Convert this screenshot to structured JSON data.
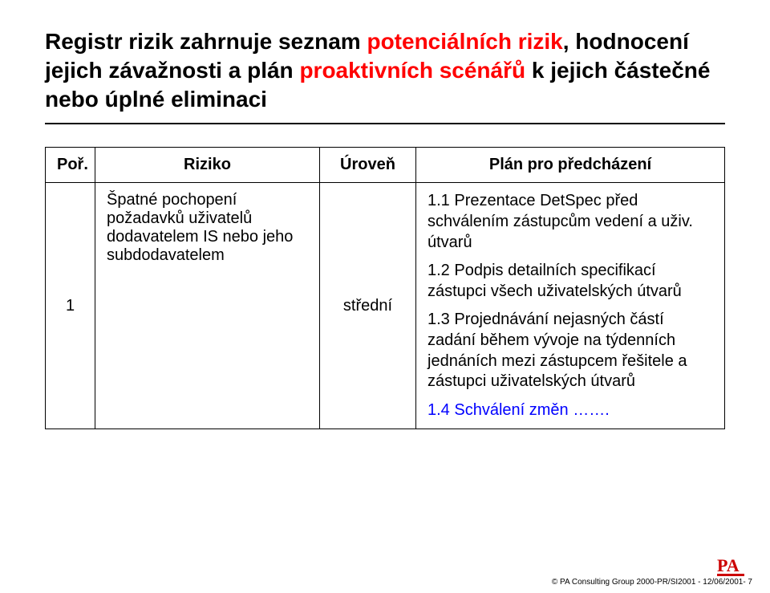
{
  "title": {
    "line1_pre": "Registr rizik zahrnuje seznam ",
    "line1_red1": "potenciálních rizik",
    "line1_mid": ", hodnocení jejich závažnosti a plán ",
    "line1_red2": "proaktivních scénářů",
    "line1_post": " k jejich částečné nebo úplné eliminaci"
  },
  "table": {
    "headers": {
      "por": "Poř.",
      "riziko": "Riziko",
      "uroven": "Úroveň",
      "plan": "Plán pro předcházení"
    },
    "row": {
      "por": "1",
      "riziko": "Špatné pochopení požadavků uživatelů dodavatelem IS nebo jeho subdodavatelem",
      "uroven": "střední",
      "plan": [
        {
          "num": "1.1",
          "txt": "Prezentace DetSpec před schválením zástupcům vedení a uživ. útvarů",
          "blue": false
        },
        {
          "num": "1.2",
          "txt": "Podpis detailních specifikací zástupci všech uživatelských útvarů",
          "blue": false
        },
        {
          "num": "1.3",
          "txt": "Projednávání nejasných částí zadání během vývoje na týdenních jednáních mezi zástupcem řešitele a zástupci uživatelských útvarů",
          "blue": false
        },
        {
          "num": "1.4",
          "txt": "Schválení změn …….",
          "blue": true
        }
      ]
    }
  },
  "footer": {
    "logo_text": "PA",
    "logo_color": "#cc0000",
    "copyright": "© PA Consulting Group 2000-PR/SI2001 - 12/06/2001- 7"
  },
  "colors": {
    "red": "#ff0000",
    "blue": "#0000ff",
    "text": "#000000",
    "bg": "#ffffff"
  }
}
